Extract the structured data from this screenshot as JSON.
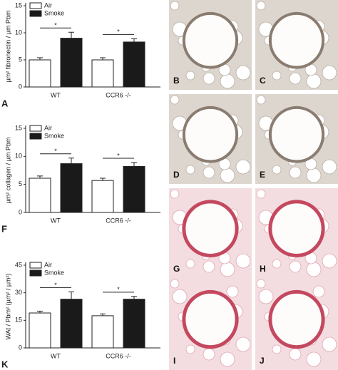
{
  "chart_data": [
    {
      "type": "bar",
      "panel_label": "A",
      "y_label": "µm² fibronectin / µm Pbm",
      "categories": [
        "WT",
        "CCR6 -/-"
      ],
      "significance": [
        "*",
        "*"
      ],
      "series": [
        {
          "name": "Air",
          "color": "#ffffff",
          "values": [
            5,
            5
          ],
          "errors": [
            0.4,
            0.4
          ]
        },
        {
          "name": "Smoke",
          "color": "#1a1a1a",
          "values": [
            9,
            8.3
          ],
          "errors": [
            1.1,
            0.6
          ]
        }
      ],
      "ylim": [
        0,
        15
      ],
      "yticks": [
        0,
        5,
        10,
        15
      ],
      "legend": "upper-left"
    },
    {
      "type": "bar",
      "panel_label": "F",
      "y_label": "µm² collagen / µm Pbm",
      "categories": [
        "WT",
        "CCR6 -/-"
      ],
      "significance": [
        "*",
        "*"
      ],
      "series": [
        {
          "name": "Air",
          "color": "#ffffff",
          "values": [
            6.1,
            5.7
          ],
          "errors": [
            0.4,
            0.4
          ]
        },
        {
          "name": "Smoke",
          "color": "#1a1a1a",
          "values": [
            8.7,
            8.2
          ],
          "errors": [
            1,
            0.7
          ]
        }
      ],
      "ylim": [
        0,
        15
      ],
      "yticks": [
        0,
        5,
        10,
        15
      ],
      "legend": "upper-left"
    },
    {
      "type": "bar",
      "panel_label": "K",
      "y_label": "WAt / Pbm² (µm² / µm²)",
      "categories": [
        "WT",
        "CCR6 -/-"
      ],
      "significance": [
        "*",
        "*"
      ],
      "series": [
        {
          "name": "Air",
          "color": "#ffffff",
          "values": [
            19,
            17.5
          ],
          "errors": [
            1,
            1
          ]
        },
        {
          "name": "Smoke",
          "color": "#1a1a1a",
          "values": [
            26.5,
            26.5
          ],
          "errors": [
            4,
            1.5
          ]
        }
      ],
      "ylim": [
        0,
        45
      ],
      "yticks": [
        0,
        15,
        30,
        45
      ],
      "legend": "upper-left"
    }
  ],
  "panels": [
    {
      "label": "B"
    },
    {
      "label": "C"
    },
    {
      "label": "D"
    },
    {
      "label": "E"
    },
    {
      "label": "G"
    },
    {
      "label": "H"
    },
    {
      "label": "I"
    },
    {
      "label": "J"
    }
  ]
}
